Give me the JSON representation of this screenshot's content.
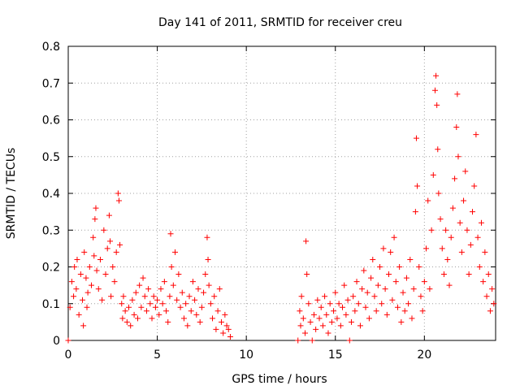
{
  "chart_data": {
    "type": "scatter",
    "title": "Day 141 of 2011, SRMTID for receiver creu",
    "xlabel": "GPS time / hours",
    "ylabel": "SRMTID / TECUs",
    "xlim": [
      0,
      24
    ],
    "ylim": [
      0,
      0.8
    ],
    "x_ticks": [
      0,
      5,
      10,
      15,
      20
    ],
    "x_tick_labels": [
      "0",
      "5",
      "10",
      "15",
      "20"
    ],
    "y_ticks": [
      0,
      0.1,
      0.2,
      0.3,
      0.4,
      0.5,
      0.6,
      0.7,
      0.8
    ],
    "y_tick_labels": [
      "0",
      "0.1",
      "0.2",
      "0.3",
      "0.4",
      "0.5",
      "0.6",
      "0.7",
      "0.8"
    ],
    "grid": true,
    "marker": "plus",
    "color": "#ff0000",
    "series": [
      {
        "name": "SRMTID",
        "points": [
          [
            0.0,
            0.0
          ],
          [
            0.1,
            0.09
          ],
          [
            0.2,
            0.16
          ],
          [
            0.3,
            0.12
          ],
          [
            0.35,
            0.2
          ],
          [
            0.45,
            0.14
          ],
          [
            0.5,
            0.22
          ],
          [
            0.6,
            0.07
          ],
          [
            0.7,
            0.18
          ],
          [
            0.8,
            0.11
          ],
          [
            0.85,
            0.04
          ],
          [
            0.9,
            0.24
          ],
          [
            1.0,
            0.17
          ],
          [
            1.05,
            0.09
          ],
          [
            1.1,
            0.13
          ],
          [
            1.2,
            0.2
          ],
          [
            1.3,
            0.15
          ],
          [
            1.4,
            0.28
          ],
          [
            1.45,
            0.23
          ],
          [
            1.5,
            0.33
          ],
          [
            1.55,
            0.36
          ],
          [
            1.6,
            0.19
          ],
          [
            1.7,
            0.14
          ],
          [
            1.8,
            0.22
          ],
          [
            1.9,
            0.11
          ],
          [
            2.0,
            0.3
          ],
          [
            2.1,
            0.18
          ],
          [
            2.2,
            0.25
          ],
          [
            2.3,
            0.34
          ],
          [
            2.35,
            0.27
          ],
          [
            2.4,
            0.12
          ],
          [
            2.5,
            0.2
          ],
          [
            2.6,
            0.16
          ],
          [
            2.7,
            0.24
          ],
          [
            2.8,
            0.4
          ],
          [
            2.85,
            0.38
          ],
          [
            2.9,
            0.26
          ],
          [
            3.0,
            0.1
          ],
          [
            3.05,
            0.06
          ],
          [
            3.1,
            0.12
          ],
          [
            3.2,
            0.08
          ],
          [
            3.3,
            0.05
          ],
          [
            3.4,
            0.09
          ],
          [
            3.5,
            0.04
          ],
          [
            3.6,
            0.11
          ],
          [
            3.7,
            0.07
          ],
          [
            3.8,
            0.13
          ],
          [
            3.9,
            0.06
          ],
          [
            4.0,
            0.15
          ],
          [
            4.1,
            0.09
          ],
          [
            4.2,
            0.17
          ],
          [
            4.3,
            0.12
          ],
          [
            4.4,
            0.08
          ],
          [
            4.5,
            0.14
          ],
          [
            4.6,
            0.1
          ],
          [
            4.7,
            0.06
          ],
          [
            4.8,
            0.12
          ],
          [
            4.9,
            0.09
          ],
          [
            5.0,
            0.11
          ],
          [
            5.1,
            0.07
          ],
          [
            5.2,
            0.14
          ],
          [
            5.3,
            0.1
          ],
          [
            5.4,
            0.16
          ],
          [
            5.5,
            0.08
          ],
          [
            5.6,
            0.05
          ],
          [
            5.7,
            0.12
          ],
          [
            5.75,
            0.29
          ],
          [
            5.8,
            0.2
          ],
          [
            5.9,
            0.15
          ],
          [
            6.0,
            0.24
          ],
          [
            6.1,
            0.11
          ],
          [
            6.2,
            0.18
          ],
          [
            6.3,
            0.09
          ],
          [
            6.4,
            0.13
          ],
          [
            6.5,
            0.06
          ],
          [
            6.6,
            0.1
          ],
          [
            6.7,
            0.04
          ],
          [
            6.8,
            0.12
          ],
          [
            6.9,
            0.08
          ],
          [
            7.0,
            0.16
          ],
          [
            7.1,
            0.11
          ],
          [
            7.2,
            0.07
          ],
          [
            7.3,
            0.14
          ],
          [
            7.4,
            0.05
          ],
          [
            7.5,
            0.09
          ],
          [
            7.6,
            0.13
          ],
          [
            7.7,
            0.18
          ],
          [
            7.8,
            0.28
          ],
          [
            7.85,
            0.22
          ],
          [
            7.9,
            0.15
          ],
          [
            8.0,
            0.1
          ],
          [
            8.1,
            0.06
          ],
          [
            8.2,
            0.12
          ],
          [
            8.3,
            0.03
          ],
          [
            8.4,
            0.08
          ],
          [
            8.5,
            0.14
          ],
          [
            8.6,
            0.05
          ],
          [
            8.7,
            0.02
          ],
          [
            8.8,
            0.07
          ],
          [
            8.9,
            0.04
          ],
          [
            9.0,
            0.03
          ],
          [
            9.1,
            0.01
          ],
          [
            12.9,
            0.0
          ],
          [
            13.0,
            0.08
          ],
          [
            13.05,
            0.04
          ],
          [
            13.1,
            0.12
          ],
          [
            13.2,
            0.06
          ],
          [
            13.3,
            0.02
          ],
          [
            13.35,
            0.27
          ],
          [
            13.4,
            0.18
          ],
          [
            13.5,
            0.1
          ],
          [
            13.6,
            0.05
          ],
          [
            13.7,
            0.0
          ],
          [
            13.8,
            0.07
          ],
          [
            13.9,
            0.03
          ],
          [
            14.0,
            0.11
          ],
          [
            14.1,
            0.06
          ],
          [
            14.2,
            0.09
          ],
          [
            14.3,
            0.04
          ],
          [
            14.4,
            0.12
          ],
          [
            14.5,
            0.07
          ],
          [
            14.6,
            0.02
          ],
          [
            14.7,
            0.1
          ],
          [
            14.8,
            0.05
          ],
          [
            14.9,
            0.08
          ],
          [
            15.0,
            0.13
          ],
          [
            15.1,
            0.06
          ],
          [
            15.2,
            0.1
          ],
          [
            15.3,
            0.04
          ],
          [
            15.4,
            0.09
          ],
          [
            15.5,
            0.15
          ],
          [
            15.6,
            0.07
          ],
          [
            15.7,
            0.11
          ],
          [
            15.8,
            0.0
          ],
          [
            15.9,
            0.05
          ],
          [
            16.0,
            0.12
          ],
          [
            16.1,
            0.08
          ],
          [
            16.2,
            0.16
          ],
          [
            16.3,
            0.1
          ],
          [
            16.4,
            0.04
          ],
          [
            16.5,
            0.14
          ],
          [
            16.6,
            0.19
          ],
          [
            16.7,
            0.09
          ],
          [
            16.8,
            0.13
          ],
          [
            16.9,
            0.06
          ],
          [
            17.0,
            0.17
          ],
          [
            17.1,
            0.22
          ],
          [
            17.2,
            0.12
          ],
          [
            17.3,
            0.08
          ],
          [
            17.4,
            0.15
          ],
          [
            17.5,
            0.2
          ],
          [
            17.6,
            0.1
          ],
          [
            17.7,
            0.25
          ],
          [
            17.8,
            0.14
          ],
          [
            17.9,
            0.07
          ],
          [
            18.0,
            0.18
          ],
          [
            18.1,
            0.24
          ],
          [
            18.2,
            0.11
          ],
          [
            18.3,
            0.28
          ],
          [
            18.4,
            0.16
          ],
          [
            18.5,
            0.09
          ],
          [
            18.6,
            0.2
          ],
          [
            18.7,
            0.05
          ],
          [
            18.8,
            0.13
          ],
          [
            18.9,
            0.08
          ],
          [
            19.0,
            0.17
          ],
          [
            19.1,
            0.1
          ],
          [
            19.2,
            0.22
          ],
          [
            19.3,
            0.06
          ],
          [
            19.4,
            0.14
          ],
          [
            19.5,
            0.35
          ],
          [
            19.55,
            0.55
          ],
          [
            19.6,
            0.42
          ],
          [
            19.7,
            0.2
          ],
          [
            19.8,
            0.12
          ],
          [
            19.9,
            0.08
          ],
          [
            20.0,
            0.16
          ],
          [
            20.1,
            0.25
          ],
          [
            20.2,
            0.38
          ],
          [
            20.3,
            0.14
          ],
          [
            20.4,
            0.3
          ],
          [
            20.5,
            0.45
          ],
          [
            20.6,
            0.68
          ],
          [
            20.65,
            0.72
          ],
          [
            20.7,
            0.64
          ],
          [
            20.75,
            0.52
          ],
          [
            20.8,
            0.4
          ],
          [
            20.9,
            0.33
          ],
          [
            21.0,
            0.25
          ],
          [
            21.1,
            0.18
          ],
          [
            21.2,
            0.3
          ],
          [
            21.3,
            0.22
          ],
          [
            21.4,
            0.15
          ],
          [
            21.5,
            0.28
          ],
          [
            21.6,
            0.36
          ],
          [
            21.7,
            0.44
          ],
          [
            21.8,
            0.58
          ],
          [
            21.85,
            0.67
          ],
          [
            21.9,
            0.5
          ],
          [
            22.0,
            0.32
          ],
          [
            22.1,
            0.24
          ],
          [
            22.2,
            0.38
          ],
          [
            22.3,
            0.46
          ],
          [
            22.4,
            0.3
          ],
          [
            22.5,
            0.18
          ],
          [
            22.6,
            0.26
          ],
          [
            22.7,
            0.35
          ],
          [
            22.8,
            0.42
          ],
          [
            22.9,
            0.56
          ],
          [
            23.0,
            0.28
          ],
          [
            23.1,
            0.2
          ],
          [
            23.2,
            0.32
          ],
          [
            23.3,
            0.16
          ],
          [
            23.4,
            0.24
          ],
          [
            23.5,
            0.12
          ],
          [
            23.6,
            0.18
          ],
          [
            23.7,
            0.08
          ],
          [
            23.8,
            0.14
          ],
          [
            23.9,
            0.1
          ]
        ]
      }
    ]
  }
}
